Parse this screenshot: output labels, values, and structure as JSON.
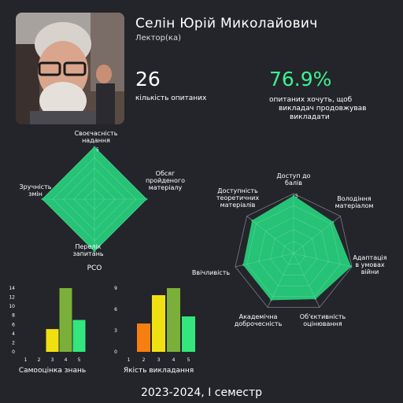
{
  "teacher": {
    "name": "Селін Юрій Миколайович",
    "role": "Лектор(ка)"
  },
  "stats": {
    "respondents_value": "26",
    "respondents_label": "кількість опитаних",
    "continue_value": "76.9%",
    "continue_label_1": "опитаних хочуть, щоб",
    "continue_label_2": "викладач продовжував",
    "continue_label_3": "викладати"
  },
  "colors": {
    "background": "#23252a",
    "green": "#27c97a",
    "accent_green": "#3ef28f",
    "bar_orange": "#f77f10",
    "bar_yellow": "#f0e012",
    "bar_olive": "#7ab03a",
    "bar_mint": "#33e67e"
  },
  "chart_data": [
    {
      "type": "radar",
      "title": "РСО",
      "axes": [
        "Своєчасність надання",
        "Обсяг пройденого матеріалу",
        "Перелік запитань",
        "Зручність змін"
      ],
      "axis_labels": [
        [
          "Своєчасність",
          "надання"
        ],
        [
          "Обсяг",
          "пройденого",
          "матеріалу"
        ],
        [
          "Перелік",
          "запитань"
        ],
        [
          "Зручність",
          "змін"
        ]
      ],
      "values": [
        5,
        5,
        5,
        5
      ],
      "rmax": 5,
      "tick_label": "5"
    },
    {
      "type": "radar",
      "axes": [
        "Доступ до балів",
        "Володіння матеріалом",
        "Адаптація в умовах війни",
        "Об'єктивність оцінювання",
        "Академічна доброчесність",
        "Ввічливість",
        "Доступність теоретичних матеріалів"
      ],
      "axis_labels": [
        [
          "Доступ до",
          "балів"
        ],
        [
          "Володіння",
          "матеріалом"
        ],
        [
          "Адаптація",
          "в умовах",
          "війни"
        ],
        [
          "Об'єктивність",
          "оцінювання"
        ],
        [
          "Академічна",
          "доброчесність"
        ],
        [
          "Ввічливість"
        ],
        [
          "Доступність",
          "теоретичних",
          "матеріалів"
        ]
      ],
      "values": [
        4.8,
        4.2,
        4.9,
        4.2,
        4.3,
        4.3,
        4.4
      ],
      "rmax": 5,
      "tick_label": "5"
    },
    {
      "type": "bar",
      "xlabel": "Самооцінка знань",
      "categories": [
        "1",
        "2",
        "3",
        "4",
        "5"
      ],
      "values": [
        0,
        0,
        5,
        14,
        7
      ],
      "ylim": [
        0,
        14
      ],
      "yticks": [
        0,
        2,
        4,
        6,
        8,
        10,
        12,
        14
      ],
      "colors": [
        "#f77f10",
        "#f77f10",
        "#f0e012",
        "#7ab03a",
        "#33e67e"
      ]
    },
    {
      "type": "bar",
      "xlabel": "Якість викладання",
      "categories": [
        "1",
        "2",
        "3",
        "4",
        "5"
      ],
      "values": [
        0,
        4,
        8,
        9,
        5
      ],
      "ylim": [
        0,
        9
      ],
      "yticks": [
        0,
        3,
        6,
        9
      ],
      "colors": [
        "#f77f10",
        "#f77f10",
        "#f0e012",
        "#7ab03a",
        "#33e67e"
      ]
    }
  ],
  "footer": "2023-2024, I семестр"
}
